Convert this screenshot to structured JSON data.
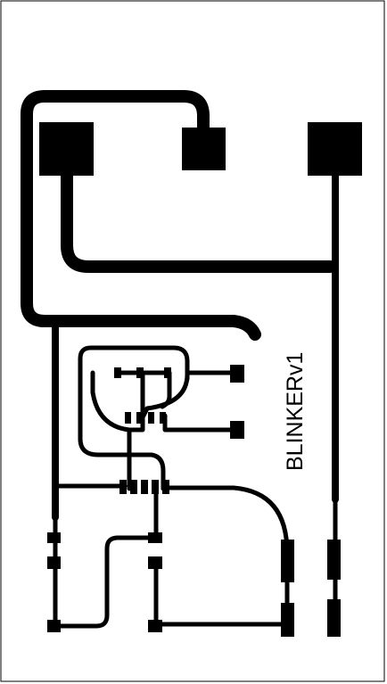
{
  "board": {
    "label": "BLINKERv1",
    "ink_color": "#000000",
    "background_color": "#ffffff"
  }
}
